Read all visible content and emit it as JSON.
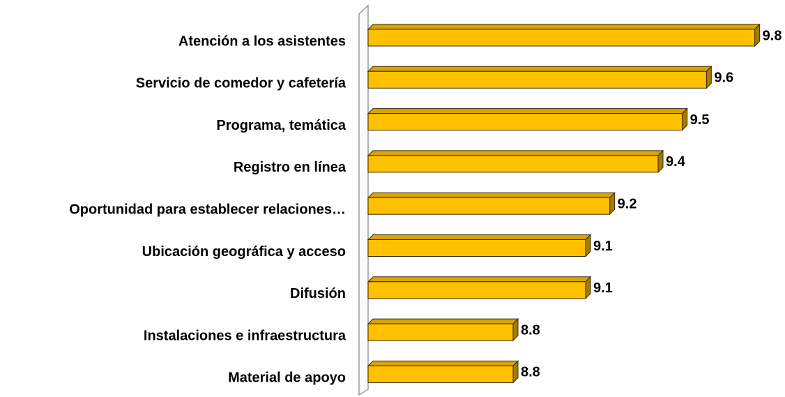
{
  "chart_data": {
    "type": "bar",
    "orientation": "horizontal",
    "categories": [
      "Atención a los asistentes",
      "Servicio de comedor y cafetería",
      "Programa, temática",
      "Registro en línea",
      "Oportunidad para establecer relaciones…",
      "Ubicación geográfica y acceso",
      "Difusión",
      "Instalaciones e infraestructura",
      "Material de apoyo"
    ],
    "values": [
      9.8,
      9.6,
      9.5,
      9.4,
      9.2,
      9.1,
      9.1,
      8.8,
      8.8
    ],
    "color": "#ffc000",
    "xlim": [
      8.2,
      9.85
    ]
  }
}
